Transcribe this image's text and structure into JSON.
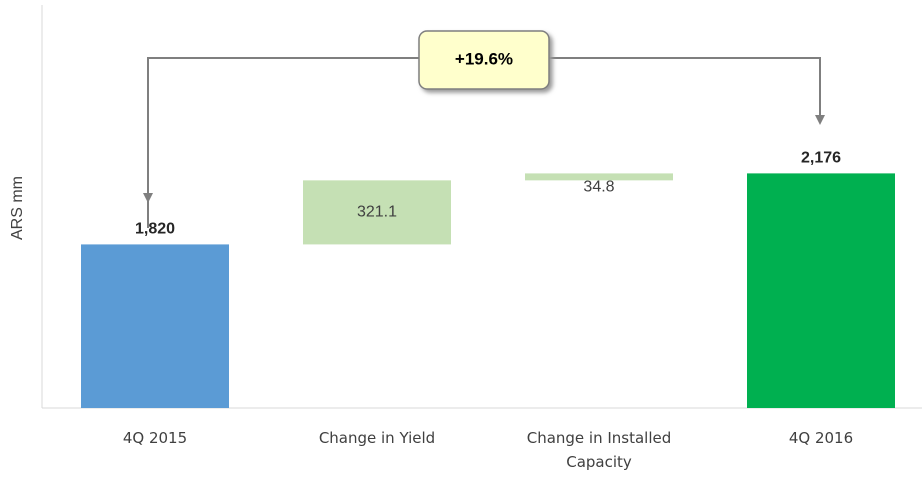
{
  "chart_data": {
    "type": "waterfall",
    "categories": [
      "4Q 2015",
      "Change in Yield",
      "Change in Installed Capacity",
      "4Q 2016"
    ],
    "values": [
      1820,
      321.1,
      34.8,
      2176
    ],
    "value_labels": [
      "1,820",
      "321.1",
      "34.8",
      "2,176"
    ],
    "measure": [
      "absolute",
      "relative",
      "relative",
      "total"
    ],
    "colors": [
      "#5b9bd5",
      "#c5e0b4",
      "#c5e0b4",
      "#00b050"
    ],
    "ylabel": "ARS mm",
    "annotation": "+19.6%",
    "ylim": [
      1000,
      3000
    ]
  }
}
